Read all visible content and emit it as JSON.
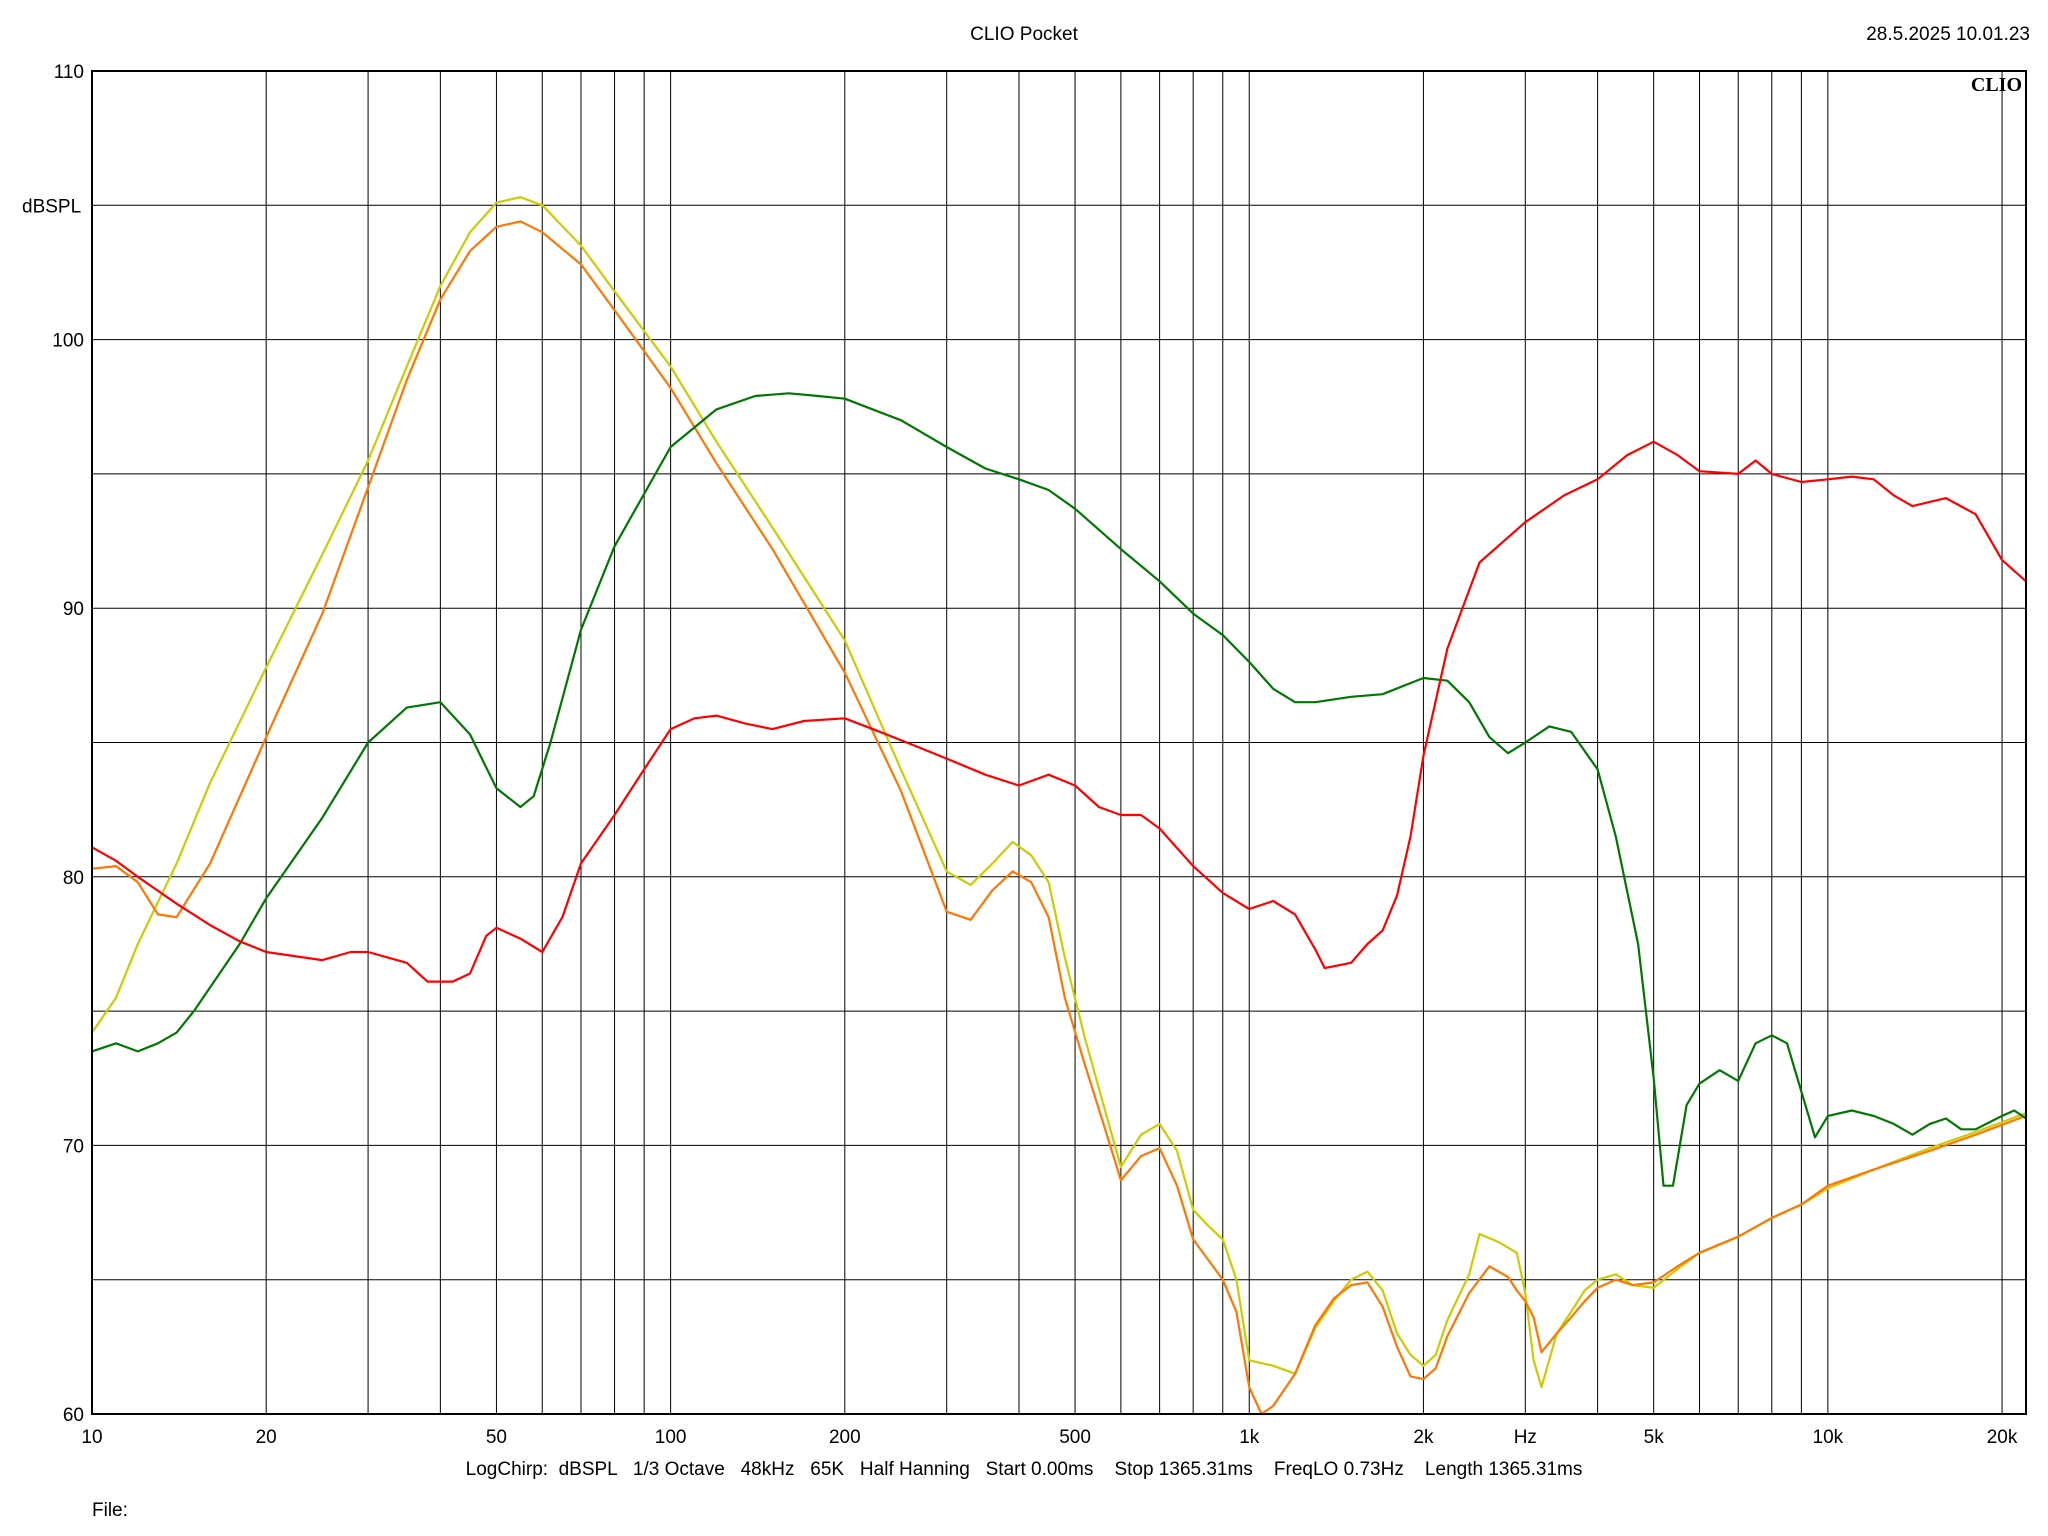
{
  "header": {
    "title": "CLIO Pocket",
    "timestamp": "28.5.2025 10.01.23"
  },
  "footer": {
    "params": "LogChirp:  dBSPL   1/3 Octave   48kHz   65K   Half Hanning   Start 0.00ms    Stop 1365.31ms    FreqLO 0.73Hz    Length 1365.31ms",
    "file_label": "File:"
  },
  "chart_data": {
    "type": "line",
    "title": "CLIO Pocket",
    "logo": "CLIO",
    "xscale": "log",
    "xlim": [
      10,
      22000
    ],
    "ylim": [
      60,
      110
    ],
    "ylabel": "dBSPL",
    "xlabel": "Hz",
    "grid": true,
    "yticks": [
      {
        "value": 60,
        "label": "60"
      },
      {
        "value": 70,
        "label": "70"
      },
      {
        "value": 80,
        "label": "80"
      },
      {
        "value": 90,
        "label": "90"
      },
      {
        "value": 100,
        "label": "100"
      },
      {
        "value": 110,
        "label": "110"
      }
    ],
    "xticks": [
      {
        "value": 10,
        "label": "10"
      },
      {
        "value": 20,
        "label": "20"
      },
      {
        "value": 50,
        "label": "50"
      },
      {
        "value": 100,
        "label": "100"
      },
      {
        "value": 200,
        "label": "200"
      },
      {
        "value": 500,
        "label": "500"
      },
      {
        "value": 1000,
        "label": "1k"
      },
      {
        "value": 2000,
        "label": "2k"
      },
      {
        "value": 5000,
        "label": "5k"
      },
      {
        "value": 10000,
        "label": "10k"
      },
      {
        "value": 20000,
        "label": "20k"
      }
    ],
    "series": [
      {
        "color": "#cccc00",
        "points": [
          [
            10,
            74.2
          ],
          [
            11,
            75.5
          ],
          [
            12,
            77.5
          ],
          [
            14,
            80.5
          ],
          [
            16,
            83.5
          ],
          [
            20,
            87.8
          ],
          [
            25,
            92
          ],
          [
            30,
            95.5
          ],
          [
            35,
            99
          ],
          [
            40,
            102
          ],
          [
            45,
            104
          ],
          [
            50,
            105.1
          ],
          [
            55,
            105.3
          ],
          [
            60,
            105
          ],
          [
            70,
            103.5
          ],
          [
            80,
            101.8
          ],
          [
            100,
            99
          ],
          [
            120,
            96.2
          ],
          [
            150,
            93
          ],
          [
            200,
            88.8
          ],
          [
            250,
            84
          ],
          [
            300,
            80.2
          ],
          [
            330,
            79.7
          ],
          [
            360,
            80.5
          ],
          [
            390,
            81.3
          ],
          [
            420,
            80.8
          ],
          [
            450,
            79.8
          ],
          [
            480,
            77
          ],
          [
            520,
            74
          ],
          [
            560,
            71.5
          ],
          [
            600,
            69.2
          ],
          [
            650,
            70.4
          ],
          [
            700,
            70.8
          ],
          [
            750,
            69.8
          ],
          [
            800,
            67.6
          ],
          [
            850,
            67
          ],
          [
            900,
            66.5
          ],
          [
            950,
            65
          ],
          [
            1000,
            62
          ],
          [
            1100,
            61.8
          ],
          [
            1200,
            61.5
          ],
          [
            1300,
            63.2
          ],
          [
            1400,
            64.2
          ],
          [
            1500,
            65
          ],
          [
            1600,
            65.3
          ],
          [
            1700,
            64.6
          ],
          [
            1800,
            63
          ],
          [
            1900,
            62.2
          ],
          [
            2000,
            61.8
          ],
          [
            2100,
            62.2
          ],
          [
            2200,
            63.5
          ],
          [
            2400,
            65.2
          ],
          [
            2500,
            66.7
          ],
          [
            2700,
            66.4
          ],
          [
            2900,
            66
          ],
          [
            3000,
            64.5
          ],
          [
            3100,
            62
          ],
          [
            3200,
            61
          ],
          [
            3400,
            63
          ],
          [
            3600,
            63.8
          ],
          [
            3800,
            64.6
          ],
          [
            4000,
            65
          ],
          [
            4300,
            65.2
          ],
          [
            4600,
            64.8
          ],
          [
            5000,
            64.7
          ],
          [
            5500,
            65.4
          ],
          [
            6000,
            66
          ],
          [
            7000,
            66.6
          ],
          [
            8000,
            67.3
          ],
          [
            9000,
            67.8
          ],
          [
            10000,
            68.4
          ],
          [
            12000,
            69.1
          ],
          [
            15000,
            69.9
          ],
          [
            18000,
            70.5
          ],
          [
            22000,
            71.2
          ]
        ]
      },
      {
        "color": "#ff7700",
        "points": [
          [
            10,
            80.3
          ],
          [
            11,
            80.4
          ],
          [
            12,
            79.8
          ],
          [
            13,
            78.6
          ],
          [
            14,
            78.5
          ],
          [
            16,
            80.5
          ],
          [
            20,
            85.2
          ],
          [
            25,
            89.8
          ],
          [
            30,
            94.5
          ],
          [
            35,
            98.5
          ],
          [
            40,
            101.5
          ],
          [
            45,
            103.3
          ],
          [
            50,
            104.2
          ],
          [
            55,
            104.4
          ],
          [
            60,
            104
          ],
          [
            70,
            102.8
          ],
          [
            80,
            101.1
          ],
          [
            100,
            98.2
          ],
          [
            120,
            95.4
          ],
          [
            150,
            92.2
          ],
          [
            200,
            87.6
          ],
          [
            250,
            83.2
          ],
          [
            300,
            78.7
          ],
          [
            330,
            78.4
          ],
          [
            360,
            79.5
          ],
          [
            390,
            80.2
          ],
          [
            420,
            79.8
          ],
          [
            450,
            78.5
          ],
          [
            480,
            75.5
          ],
          [
            520,
            73
          ],
          [
            560,
            70.8
          ],
          [
            600,
            68.7
          ],
          [
            650,
            69.6
          ],
          [
            700,
            69.9
          ],
          [
            750,
            68.5
          ],
          [
            800,
            66.5
          ],
          [
            900,
            65
          ],
          [
            950,
            63.8
          ],
          [
            1000,
            61
          ],
          [
            1050,
            60
          ],
          [
            1100,
            60.3
          ],
          [
            1200,
            61.5
          ],
          [
            1300,
            63.3
          ],
          [
            1400,
            64.3
          ],
          [
            1500,
            64.8
          ],
          [
            1600,
            64.9
          ],
          [
            1700,
            64
          ],
          [
            1800,
            62.5
          ],
          [
            1900,
            61.4
          ],
          [
            2000,
            61.3
          ],
          [
            2100,
            61.7
          ],
          [
            2200,
            62.9
          ],
          [
            2400,
            64.5
          ],
          [
            2600,
            65.5
          ],
          [
            2800,
            65.1
          ],
          [
            2900,
            64.6
          ],
          [
            3000,
            64.2
          ],
          [
            3100,
            63.6
          ],
          [
            3200,
            62.3
          ],
          [
            3400,
            63
          ],
          [
            3600,
            63.6
          ],
          [
            3800,
            64.2
          ],
          [
            4000,
            64.7
          ],
          [
            4300,
            65
          ],
          [
            4600,
            64.8
          ],
          [
            5000,
            64.9
          ],
          [
            5500,
            65.5
          ],
          [
            6000,
            66
          ],
          [
            7000,
            66.6
          ],
          [
            8000,
            67.3
          ],
          [
            9000,
            67.8
          ],
          [
            10000,
            68.5
          ],
          [
            12000,
            69.1
          ],
          [
            15000,
            69.8
          ],
          [
            18000,
            70.4
          ],
          [
            22000,
            71.1
          ]
        ]
      },
      {
        "color": "#007700",
        "points": [
          [
            10,
            73.5
          ],
          [
            11,
            73.8
          ],
          [
            12,
            73.5
          ],
          [
            13,
            73.8
          ],
          [
            14,
            74.2
          ],
          [
            15,
            75
          ],
          [
            18,
            77.5
          ],
          [
            20,
            79.2
          ],
          [
            25,
            82.2
          ],
          [
            30,
            85
          ],
          [
            35,
            86.3
          ],
          [
            40,
            86.5
          ],
          [
            45,
            85.3
          ],
          [
            50,
            83.3
          ],
          [
            55,
            82.6
          ],
          [
            58,
            83
          ],
          [
            62,
            85
          ],
          [
            70,
            89.2
          ],
          [
            80,
            92.3
          ],
          [
            100,
            96
          ],
          [
            120,
            97.4
          ],
          [
            140,
            97.9
          ],
          [
            160,
            98
          ],
          [
            180,
            97.9
          ],
          [
            200,
            97.8
          ],
          [
            250,
            97
          ],
          [
            300,
            96
          ],
          [
            350,
            95.2
          ],
          [
            400,
            94.8
          ],
          [
            450,
            94.4
          ],
          [
            500,
            93.7
          ],
          [
            600,
            92.2
          ],
          [
            700,
            91
          ],
          [
            800,
            89.8
          ],
          [
            900,
            89
          ],
          [
            1000,
            88
          ],
          [
            1100,
            87
          ],
          [
            1200,
            86.5
          ],
          [
            1300,
            86.5
          ],
          [
            1500,
            86.7
          ],
          [
            1700,
            86.8
          ],
          [
            2000,
            87.4
          ],
          [
            2200,
            87.3
          ],
          [
            2400,
            86.5
          ],
          [
            2600,
            85.2
          ],
          [
            2800,
            84.6
          ],
          [
            3000,
            85
          ],
          [
            3300,
            85.6
          ],
          [
            3600,
            85.4
          ],
          [
            4000,
            84
          ],
          [
            4300,
            81.5
          ],
          [
            4700,
            77.5
          ],
          [
            5000,
            72.5
          ],
          [
            5200,
            68.5
          ],
          [
            5400,
            68.5
          ],
          [
            5700,
            71.5
          ],
          [
            6000,
            72.3
          ],
          [
            6500,
            72.8
          ],
          [
            7000,
            72.4
          ],
          [
            7500,
            73.8
          ],
          [
            8000,
            74.1
          ],
          [
            8500,
            73.8
          ],
          [
            9000,
            72
          ],
          [
            9500,
            70.3
          ],
          [
            10000,
            71.1
          ],
          [
            11000,
            71.3
          ],
          [
            12000,
            71.1
          ],
          [
            13000,
            70.8
          ],
          [
            14000,
            70.4
          ],
          [
            15000,
            70.8
          ],
          [
            16000,
            71
          ],
          [
            17000,
            70.6
          ],
          [
            18000,
            70.6
          ],
          [
            20000,
            71.1
          ],
          [
            21000,
            71.3
          ],
          [
            22000,
            71
          ]
        ]
      },
      {
        "color": "#ff0000",
        "points": [
          [
            10,
            81.1
          ],
          [
            11,
            80.6
          ],
          [
            12,
            80
          ],
          [
            14,
            79
          ],
          [
            16,
            78.2
          ],
          [
            18,
            77.6
          ],
          [
            20,
            77.2
          ],
          [
            25,
            76.9
          ],
          [
            28,
            77.2
          ],
          [
            30,
            77.2
          ],
          [
            35,
            76.8
          ],
          [
            38,
            76.1
          ],
          [
            42,
            76.1
          ],
          [
            45,
            76.4
          ],
          [
            48,
            77.8
          ],
          [
            50,
            78.1
          ],
          [
            55,
            77.7
          ],
          [
            60,
            77.2
          ],
          [
            65,
            78.5
          ],
          [
            70,
            80.5
          ],
          [
            80,
            82.3
          ],
          [
            90,
            84
          ],
          [
            100,
            85.5
          ],
          [
            110,
            85.9
          ],
          [
            120,
            86
          ],
          [
            135,
            85.7
          ],
          [
            150,
            85.5
          ],
          [
            170,
            85.8
          ],
          [
            200,
            85.9
          ],
          [
            230,
            85.4
          ],
          [
            270,
            84.8
          ],
          [
            300,
            84.4
          ],
          [
            350,
            83.8
          ],
          [
            400,
            83.4
          ],
          [
            450,
            83.8
          ],
          [
            500,
            83.4
          ],
          [
            550,
            82.6
          ],
          [
            600,
            82.3
          ],
          [
            650,
            82.3
          ],
          [
            700,
            81.8
          ],
          [
            800,
            80.4
          ],
          [
            900,
            79.4
          ],
          [
            1000,
            78.8
          ],
          [
            1100,
            79.1
          ],
          [
            1200,
            78.6
          ],
          [
            1300,
            77.3
          ],
          [
            1350,
            76.6
          ],
          [
            1500,
            76.8
          ],
          [
            1600,
            77.5
          ],
          [
            1700,
            78
          ],
          [
            1800,
            79.3
          ],
          [
            1900,
            81.5
          ],
          [
            2000,
            84.5
          ],
          [
            2200,
            88.5
          ],
          [
            2500,
            91.7
          ],
          [
            3000,
            93.2
          ],
          [
            3500,
            94.2
          ],
          [
            4000,
            94.8
          ],
          [
            4500,
            95.7
          ],
          [
            5000,
            96.2
          ],
          [
            5500,
            95.7
          ],
          [
            6000,
            95.1
          ],
          [
            7000,
            95
          ],
          [
            7500,
            95.5
          ],
          [
            8000,
            95
          ],
          [
            9000,
            94.7
          ],
          [
            10000,
            94.8
          ],
          [
            11000,
            94.9
          ],
          [
            12000,
            94.8
          ],
          [
            13000,
            94.2
          ],
          [
            14000,
            93.8
          ],
          [
            16000,
            94.1
          ],
          [
            18000,
            93.5
          ],
          [
            20000,
            91.8
          ],
          [
            22000,
            91
          ]
        ]
      }
    ]
  }
}
